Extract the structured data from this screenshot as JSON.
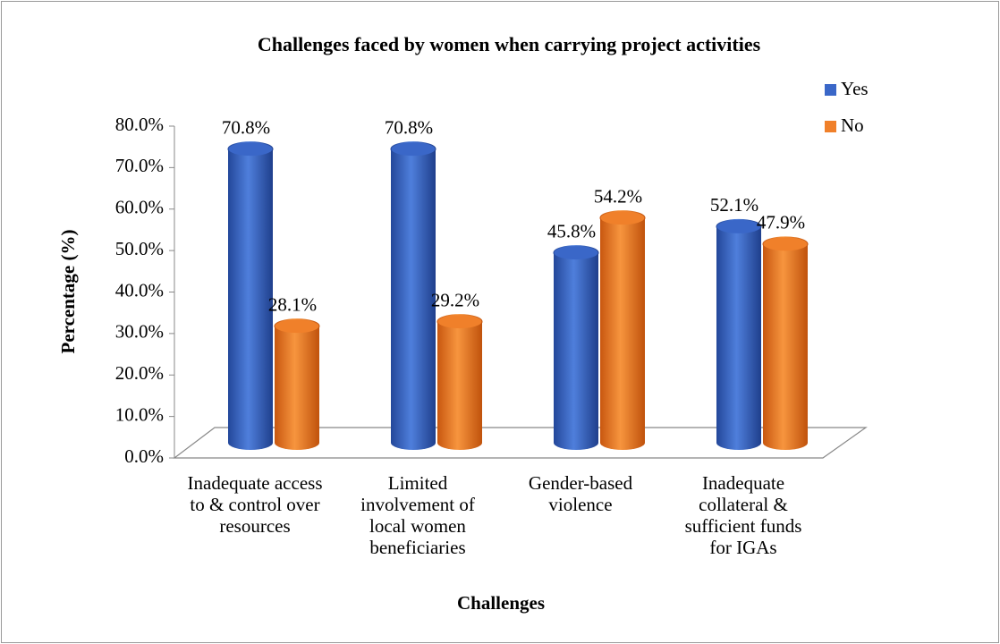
{
  "chart_data": {
    "type": "bar3d",
    "title": "Challenges faced by women  when carrying project activities",
    "xlabel": "Challenges",
    "ylabel": "Percentage (%)",
    "categories": [
      "Inadequate access to & control over resources",
      "Limited involvement of local women beneficiaries",
      "Gender-based violence",
      "Inadequate collateral & sufficient funds for IGAs"
    ],
    "series": [
      {
        "name": "Yes",
        "color": "#3a67c8",
        "values": [
          70.8,
          70.8,
          45.8,
          52.1
        ],
        "value_labels": [
          "70.8%",
          "70.8%",
          "45.8%",
          "52.1%"
        ]
      },
      {
        "name": "No",
        "color": "#f0802a",
        "values": [
          28.1,
          29.2,
          54.2,
          47.9
        ],
        "value_labels": [
          "28.1%",
          "29.2%",
          "54.2%",
          "47.9%"
        ]
      }
    ],
    "ylim": [
      0,
      80
    ],
    "yticks": [
      {
        "value": 0,
        "label": "0.0%"
      },
      {
        "value": 10,
        "label": "10.0%"
      },
      {
        "value": 20,
        "label": "20.0%"
      },
      {
        "value": 30,
        "label": "30.0%"
      },
      {
        "value": 40,
        "label": "40.0%"
      },
      {
        "value": 50,
        "label": "50.0%"
      },
      {
        "value": 60,
        "label": "60.0%"
      },
      {
        "value": 70,
        "label": "70.0%"
      },
      {
        "value": 80,
        "label": "80.0%"
      }
    ],
    "legend": "top-right"
  }
}
